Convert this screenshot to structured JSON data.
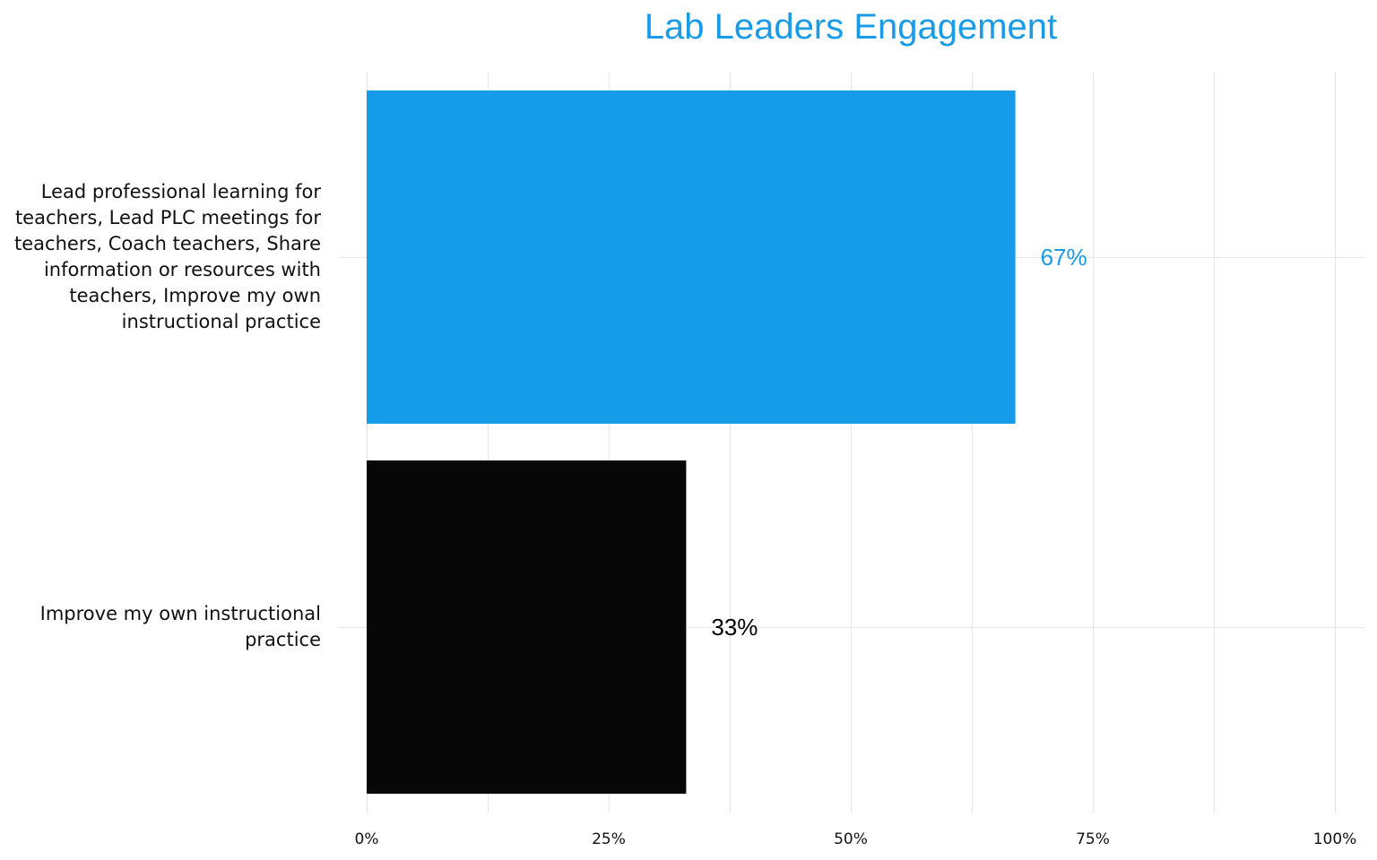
{
  "chart_data": {
    "type": "bar",
    "orientation": "horizontal",
    "title": "Lab Leaders Engagement",
    "title_color": "#1a9be8",
    "categories": [
      "Lead professional learning for teachers, Lead PLC meetings for teachers, Coach teachers, Share information or resources with teachers, Improve my own instructional practice",
      "Improve my own instructional practice"
    ],
    "values": [
      67,
      33
    ],
    "data_labels": [
      "67%",
      "33%"
    ],
    "bar_colors": [
      "#169be9",
      "#070707"
    ],
    "label_colors": [
      "#1a9be8",
      "#000000"
    ],
    "xlim": [
      0,
      100
    ],
    "x_ticks": [
      "0%",
      "25%",
      "50%",
      "75%",
      "100%"
    ],
    "x_tick_values": [
      0,
      25,
      50,
      75,
      100
    ],
    "grid": true,
    "legend": "none"
  }
}
